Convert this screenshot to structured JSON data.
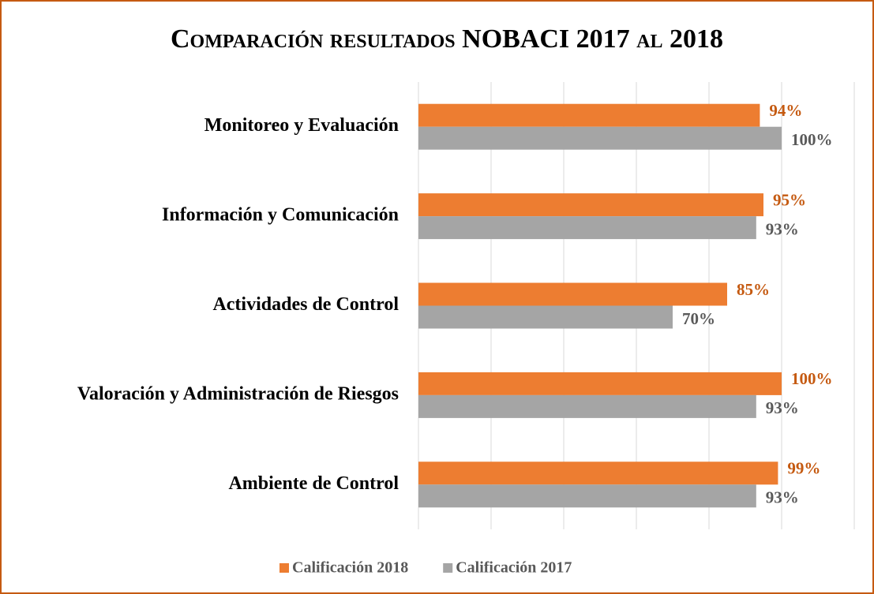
{
  "chart_data": {
    "type": "bar",
    "orientation": "horizontal",
    "title": "Comparación resultados NOBACI 2017 al 2018",
    "categories": [
      "Monitoreo y Evaluación",
      "Información y Comunicación",
      "Actividades de Control",
      "Valoración y Administración de Riesgos",
      "Ambiente de Control"
    ],
    "series": [
      {
        "name": "Calificación 2018",
        "color": "#ed7d31",
        "label_color": "#c55a11",
        "values": [
          94,
          95,
          85,
          100,
          99
        ],
        "value_labels": [
          "94%",
          "95%",
          "85%",
          "100%",
          "99%"
        ]
      },
      {
        "name": "Calificación 2017",
        "color": "#a5a5a5",
        "label_color": "#595959",
        "values": [
          100,
          93,
          70,
          93,
          93
        ],
        "value_labels": [
          "100%",
          "93%",
          "70%",
          "93%",
          "93%"
        ]
      }
    ],
    "xlim": [
      0,
      120
    ],
    "xticks": [
      0,
      20,
      40,
      60,
      80,
      100,
      120
    ],
    "grid": true,
    "legend": "bottom"
  }
}
